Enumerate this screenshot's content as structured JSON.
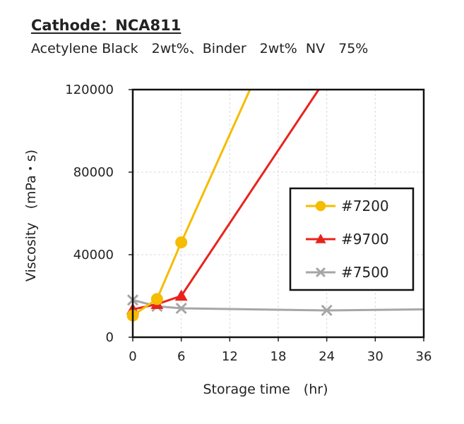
{
  "header": {
    "title": "Cathode：NCA811",
    "subtitle": "Acetylene Black　2wt%、Binder　2wt%  NV　75%"
  },
  "chart_data": {
    "type": "line",
    "xlabel": "Storage time　(hr)",
    "ylabel": "Viscosity　(mPa・s)",
    "xlim": [
      0,
      36
    ],
    "ylim": [
      0,
      120000
    ],
    "xticks": [
      0,
      6,
      12,
      18,
      24,
      30,
      36
    ],
    "yticks": [
      0,
      40000,
      80000,
      120000
    ],
    "grid": true,
    "legend_position": "right",
    "series": [
      {
        "name": "#7200",
        "color": "#F5BC00",
        "marker": "circle",
        "points": [
          [
            0,
            10500
          ],
          [
            3,
            18500
          ],
          [
            6,
            46000
          ]
        ],
        "trend_end": [
          14.5,
          120000
        ]
      },
      {
        "name": "#9700",
        "color": "#E8231C",
        "marker": "triangle",
        "points": [
          [
            0,
            13500
          ],
          [
            3,
            16000
          ],
          [
            6,
            20000
          ]
        ],
        "trend_end": [
          23,
          120000
        ]
      },
      {
        "name": "#7500",
        "color": "#A6A6A6",
        "marker": "x",
        "points": [
          [
            0,
            18000
          ],
          [
            3,
            15000
          ],
          [
            6,
            14000
          ],
          [
            24,
            13000
          ]
        ],
        "trend_end": [
          36,
          13500
        ]
      }
    ]
  }
}
